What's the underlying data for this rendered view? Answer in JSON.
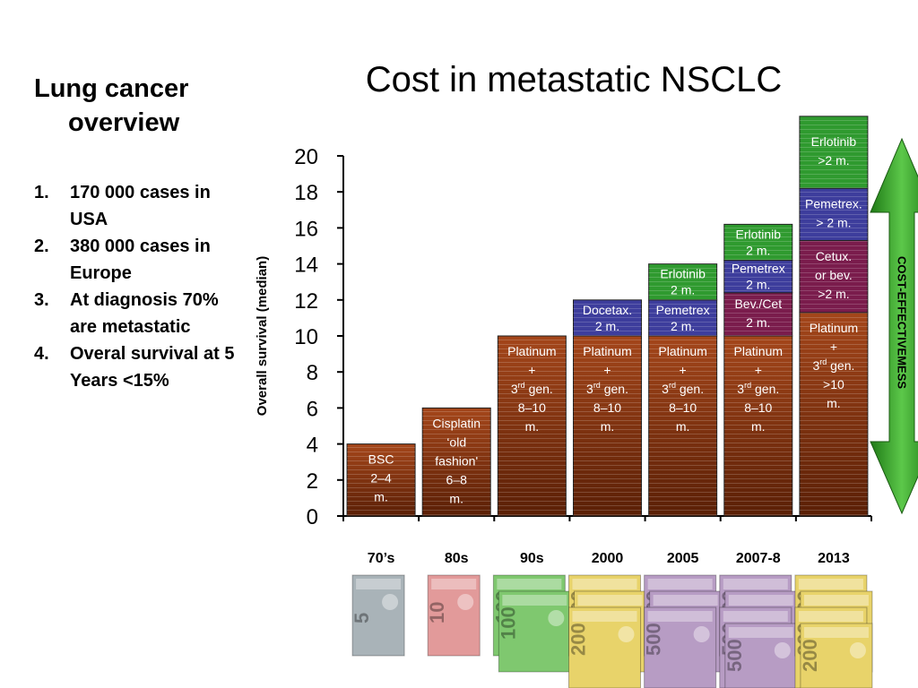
{
  "page": {
    "side_title_line1": "Lung cancer",
    "side_title_line2": "overview",
    "facts": [
      {
        "num": "1.",
        "text": "170 000 cases in USA"
      },
      {
        "num": "2.",
        "text": "380 000 cases in Europe"
      },
      {
        "num": "3.",
        "text": "At diagnosis 70% are metastatic"
      },
      {
        "num": "4.",
        "text": "Overal survival at 5 Years <15%"
      }
    ],
    "side_arrow_label": "COST-EFFECTIVEMESS",
    "money_images": [
      {
        "era": "70's",
        "note": "5",
        "color": "#a9b3b8",
        "count": 1
      },
      {
        "era": "80s",
        "note": "10",
        "color": "#e29a9a",
        "count": 1
      },
      {
        "era": "90s",
        "note": "100",
        "color": "#7fc86f",
        "count": 2
      },
      {
        "era": "2000",
        "note": "200",
        "color": "#e8d36a",
        "count": 3
      },
      {
        "era": "2005",
        "note": "500",
        "color": "#b79cc4",
        "count": 3
      },
      {
        "era": "2007-8",
        "note": "500",
        "color": "#b79cc4",
        "count": 4
      },
      {
        "era": "2013",
        "note": "200",
        "color": "#e8d36a",
        "count": 4
      }
    ]
  },
  "chart_data": {
    "type": "bar",
    "stacked": true,
    "title": "Cost in metastatic NSCLC",
    "ylabel": "Overall survival (median)",
    "ylim": [
      0,
      20
    ],
    "yticks": [
      0,
      2,
      4,
      6,
      8,
      10,
      12,
      14,
      16,
      18,
      20
    ],
    "categories": [
      "70’s",
      "80s",
      "90s",
      "2000",
      "2005",
      "2007-8",
      "2013"
    ],
    "colors": {
      "brown": "#8b3a10",
      "brown_dark": "#5a1f06",
      "blue": "#3d3d9c",
      "green": "#2f9a2f",
      "purple": "#7a1c4c",
      "arrow": "#3aaa2a"
    },
    "bars": [
      {
        "category": "70’s",
        "segments": [
          {
            "value": 4,
            "color": "brown",
            "lines": [
              "BSC",
              "2–4",
              "m."
            ]
          }
        ]
      },
      {
        "category": "80s",
        "segments": [
          {
            "value": 6,
            "color": "brown",
            "lines": [
              "Cisplatin",
              "‘old",
              "fashion'",
              "6–8",
              "m."
            ]
          }
        ]
      },
      {
        "category": "90s",
        "segments": [
          {
            "value": 10,
            "color": "brown",
            "lines": [
              "Platinum",
              "+",
              "3|rd| gen.",
              "8–10",
              "m."
            ]
          }
        ]
      },
      {
        "category": "2000",
        "segments": [
          {
            "value": 10,
            "color": "brown",
            "lines": [
              "Platinum",
              "+",
              "3|rd| gen.",
              "8–10",
              "m."
            ]
          },
          {
            "value": 2,
            "color": "blue",
            "lines": [
              "Docetax.",
              "2 m."
            ]
          }
        ]
      },
      {
        "category": "2005",
        "segments": [
          {
            "value": 10,
            "color": "brown",
            "lines": [
              "Platinum",
              "+",
              "3|rd| gen.",
              "8–10",
              "m."
            ]
          },
          {
            "value": 2,
            "color": "blue",
            "lines": [
              "Pemetrex",
              "2 m."
            ]
          },
          {
            "value": 2,
            "color": "green",
            "lines": [
              "Erlotinib",
              "2 m."
            ]
          }
        ]
      },
      {
        "category": "2007-8",
        "segments": [
          {
            "value": 10,
            "color": "brown",
            "lines": [
              "Platinum",
              "+",
              "3|rd| gen.",
              "8–10",
              "m."
            ]
          },
          {
            "value": 2.4,
            "color": "purple",
            "lines": [
              "Bev./Cet",
              "2 m."
            ]
          },
          {
            "value": 1.8,
            "color": "blue",
            "lines": [
              "Pemetrex",
              "2 m."
            ]
          },
          {
            "value": 2,
            "color": "green",
            "lines": [
              "Erlotinib",
              "2 m."
            ]
          }
        ]
      },
      {
        "category": "2013",
        "segments": [
          {
            "value": 11.3,
            "color": "brown",
            "lines": [
              "Platinum",
              "+",
              "3|rd| gen.",
              ">10",
              "m."
            ]
          },
          {
            "value": 4,
            "color": "purple",
            "lines": [
              "Cetux.",
              "or bev.",
              ">2 m."
            ]
          },
          {
            "value": 2.9,
            "color": "blue",
            "lines": [
              "Pemetrex.",
              "> 2 m."
            ]
          },
          {
            "value": 4,
            "color": "green",
            "lines": [
              "Erlotinib",
              ">2 m."
            ]
          }
        ]
      }
    ]
  }
}
